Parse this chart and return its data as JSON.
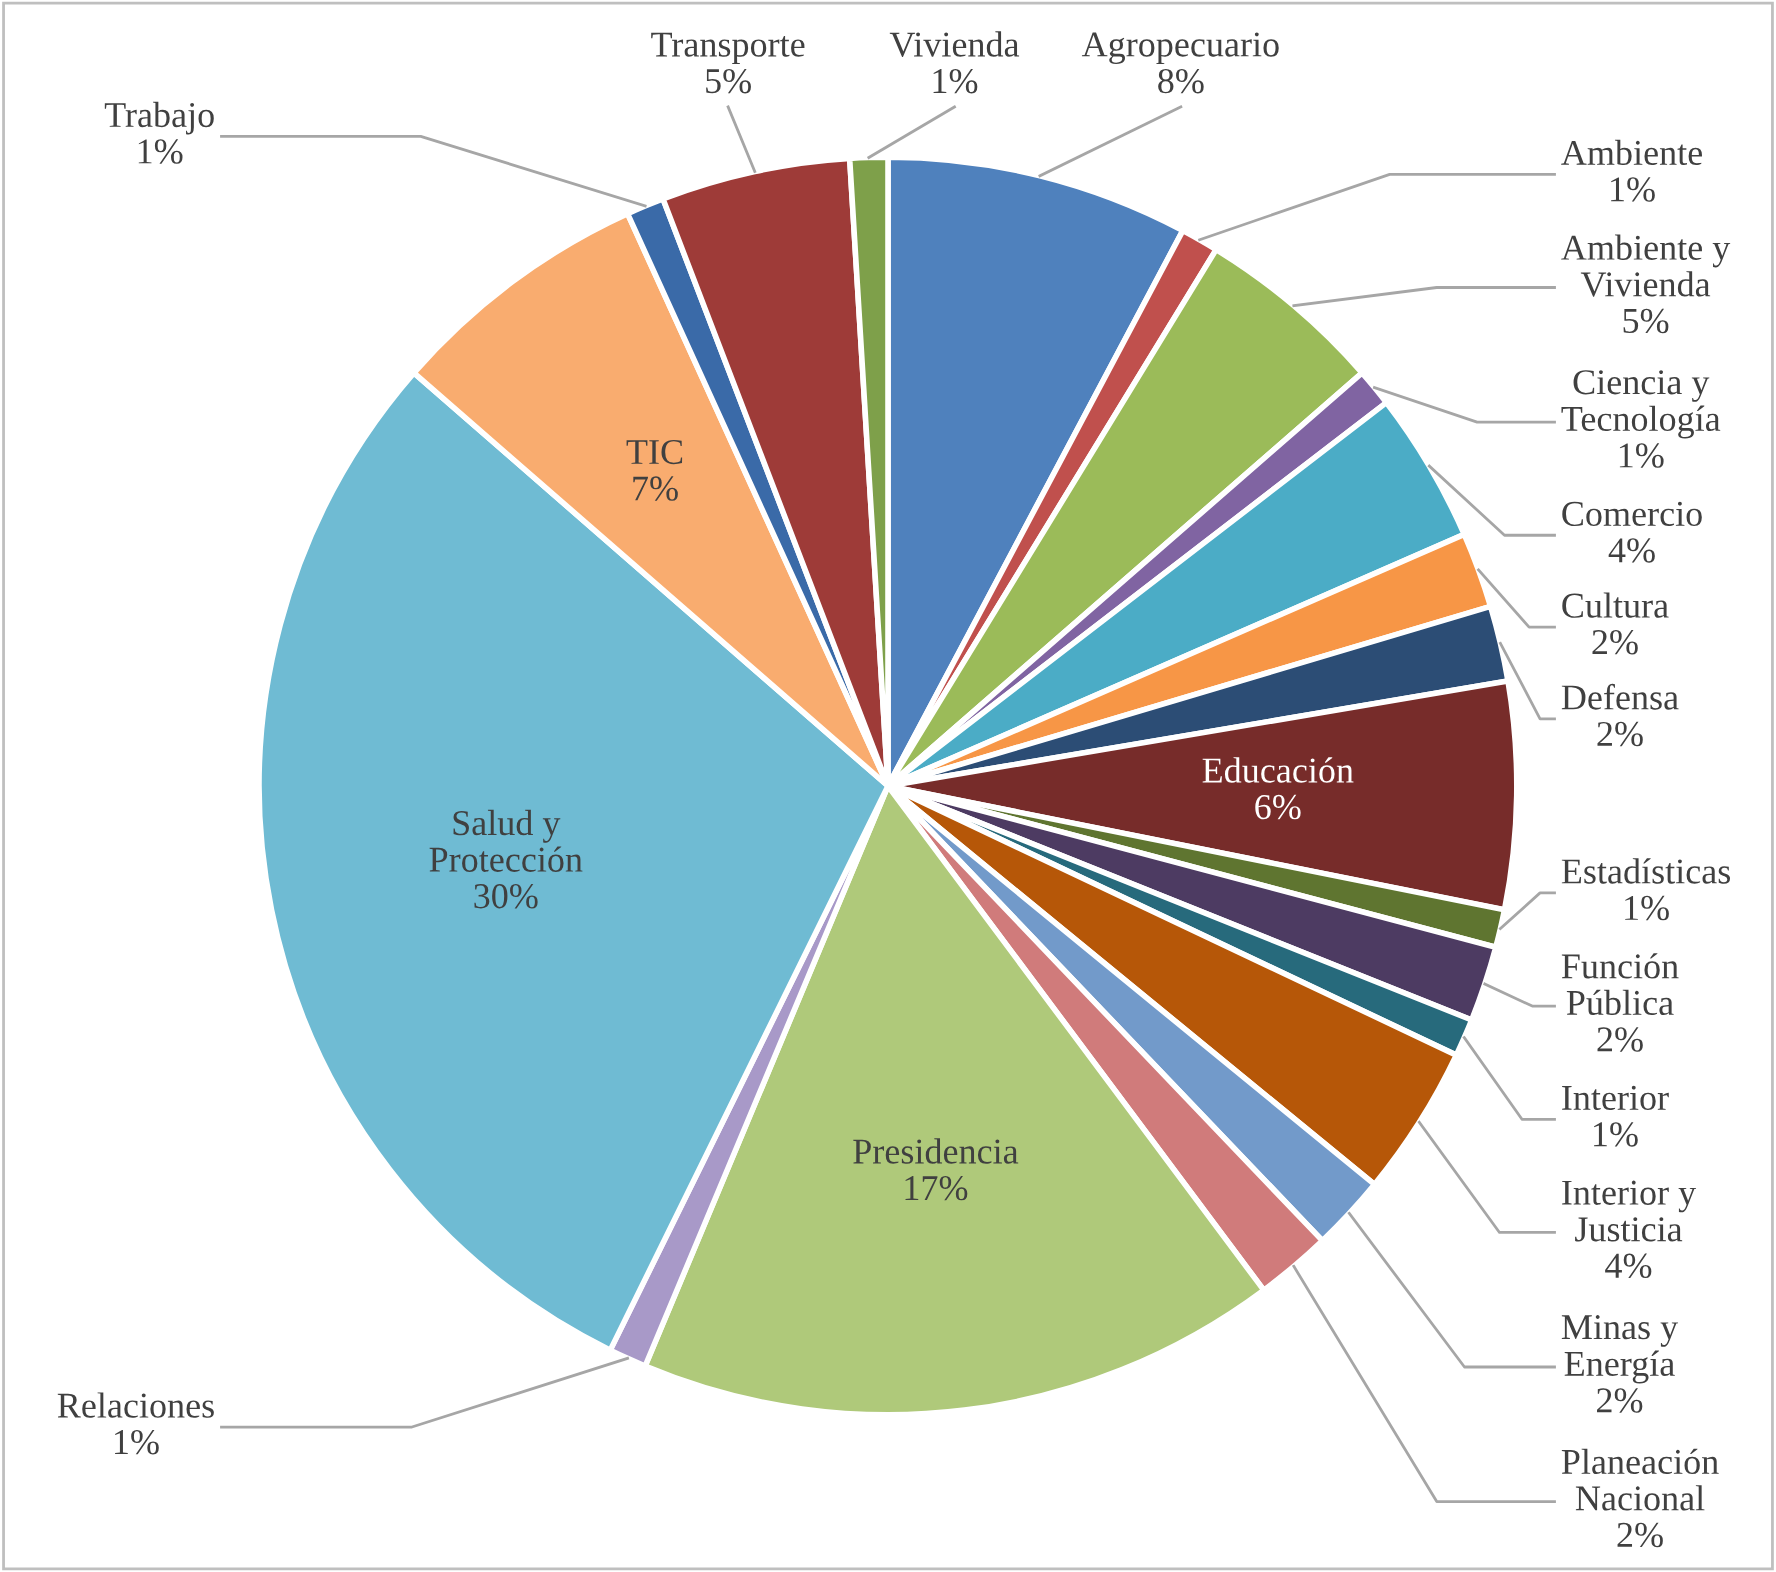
{
  "chart_data": {
    "type": "pie",
    "categories": [
      "Agropecuario",
      "Ambiente",
      "Ambiente y\nVivienda",
      "Ciencia y\nTecnología",
      "Comercio",
      "Cultura",
      "Defensa",
      "Educación",
      "Estadísticas",
      "Función\nPública",
      "Interior",
      "Interior y\nJusticia",
      "Minas y\nEnergía",
      "Planeación\nNacional",
      "Presidencia",
      "Relaciones",
      "Salud y\nProtección",
      "TIC",
      "Trabajo",
      "Transporte",
      "Vivienda"
    ],
    "values": [
      8,
      1,
      5,
      1,
      4,
      2,
      2,
      6,
      1,
      2,
      1,
      4,
      2,
      2,
      17,
      1,
      30,
      7,
      1,
      5,
      1
    ],
    "value_labels": [
      "8%",
      "1%",
      "5%",
      "1%",
      "4%",
      "2%",
      "2%",
      "6%",
      "1%",
      "2%",
      "1%",
      "4%",
      "2%",
      "2%",
      "17%",
      "1%",
      "30%",
      "7%",
      "1%",
      "5%",
      "1%"
    ],
    "colors": [
      "#4f81bd",
      "#c0504d",
      "#9bbb59",
      "#8064a2",
      "#4bacc6",
      "#f79646",
      "#2c4d75",
      "#772c2a",
      "#5f7530",
      "#4d3b62",
      "#276a7c",
      "#b65708",
      "#729aca",
      "#d07b7b",
      "#afc97a",
      "#a899c8",
      "#6fbbd3",
      "#f9ac6f",
      "#3a6aa8",
      "#9e3b38",
      "#7ea04a"
    ]
  }
}
